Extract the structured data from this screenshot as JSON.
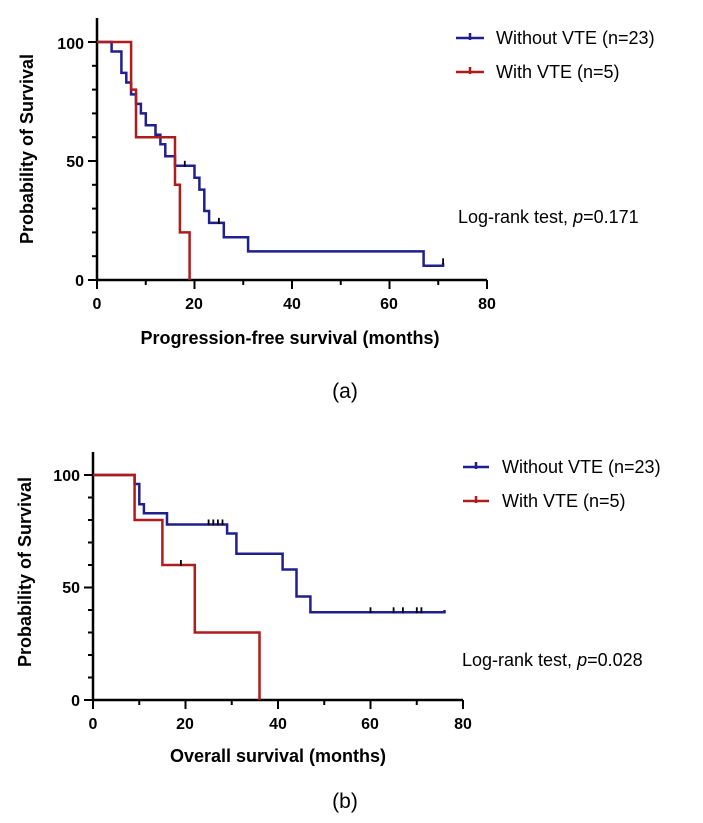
{
  "colors": {
    "without_vte": "#1f1f8f",
    "with_vte": "#b01c1c",
    "axis": "#000000"
  },
  "chart_data": [
    {
      "type": "line",
      "panel_label": "(a)",
      "xlabel": "Progression-free survival (months)",
      "ylabel": "Probability of Survival",
      "xlim": [
        0,
        80
      ],
      "ylim": [
        0,
        100
      ],
      "x_ticks": [
        "0",
        "20",
        "40",
        "60",
        "80"
      ],
      "y_ticks": [
        "0",
        "50",
        "100"
      ],
      "annotation_prefix": "Log-rank test, ",
      "annotation_p": "p",
      "annotation_value": "=0.171",
      "series": [
        {
          "name": "Without VTE (n=23)",
          "color": "#1f1f8f",
          "steps": [
            [
              0,
              100
            ],
            [
              3,
              100
            ],
            [
              3,
              96
            ],
            [
              5,
              96
            ],
            [
              5,
              87
            ],
            [
              6,
              87
            ],
            [
              6,
              83
            ],
            [
              7,
              83
            ],
            [
              7,
              78
            ],
            [
              8,
              78
            ],
            [
              8,
              74
            ],
            [
              9,
              74
            ],
            [
              9,
              70
            ],
            [
              10,
              70
            ],
            [
              10,
              65
            ],
            [
              12,
              65
            ],
            [
              12,
              61
            ],
            [
              13,
              61
            ],
            [
              13,
              57
            ],
            [
              14,
              57
            ],
            [
              14,
              52
            ],
            [
              16,
              52
            ],
            [
              16,
              48
            ],
            [
              20,
              48
            ],
            [
              20,
              43
            ],
            [
              21,
              43
            ],
            [
              21,
              38
            ],
            [
              22,
              38
            ],
            [
              22,
              29
            ],
            [
              23,
              29
            ],
            [
              23,
              24
            ],
            [
              26,
              24
            ],
            [
              26,
              18
            ],
            [
              31,
              18
            ],
            [
              31,
              12
            ],
            [
              67,
              12
            ],
            [
              67,
              6
            ],
            [
              71,
              6
            ],
            [
              71,
              7
            ]
          ],
          "censor_x": [
            18,
            25,
            71
          ],
          "censor_y": [
            48,
            24,
            7
          ]
        },
        {
          "name": "With VTE (n=5)",
          "color": "#b01c1c",
          "steps": [
            [
              0,
              100
            ],
            [
              7,
              100
            ],
            [
              7,
              80
            ],
            [
              8,
              80
            ],
            [
              8,
              60
            ],
            [
              16,
              60
            ],
            [
              16,
              40
            ],
            [
              17,
              40
            ],
            [
              17,
              20
            ],
            [
              19,
              20
            ],
            [
              19,
              0
            ]
          ],
          "censor_x": [],
          "censor_y": []
        }
      ]
    },
    {
      "type": "line",
      "panel_label": "(b)",
      "xlabel": "Overall survival (months)",
      "ylabel": "Probability of Survival",
      "xlim": [
        0,
        80
      ],
      "ylim": [
        0,
        100
      ],
      "x_ticks": [
        "0",
        "20",
        "40",
        "60",
        "80"
      ],
      "y_ticks": [
        "0",
        "50",
        "100"
      ],
      "annotation_prefix": "Log-rank test, ",
      "annotation_p": "p",
      "annotation_value": "=0.028",
      "series": [
        {
          "name": "Without VTE (n=23)",
          "color": "#1f1f8f",
          "steps": [
            [
              0,
              100
            ],
            [
              9,
              100
            ],
            [
              9,
              96
            ],
            [
              10,
              96
            ],
            [
              10,
              87
            ],
            [
              11,
              87
            ],
            [
              11,
              83
            ],
            [
              16,
              83
            ],
            [
              16,
              78
            ],
            [
              29,
              78
            ],
            [
              29,
              74
            ],
            [
              31,
              74
            ],
            [
              31,
              65
            ],
            [
              41,
              65
            ],
            [
              41,
              58
            ],
            [
              44,
              58
            ],
            [
              44,
              46
            ],
            [
              47,
              46
            ],
            [
              47,
              39
            ],
            [
              76,
              39
            ],
            [
              76,
              40
            ]
          ],
          "censor_x": [
            25,
            26,
            27,
            28,
            60,
            65,
            67,
            70,
            71
          ],
          "censor_y": [
            78,
            78,
            78,
            78,
            39,
            39,
            39,
            39,
            39
          ]
        },
        {
          "name": "With VTE (n=5)",
          "color": "#b01c1c",
          "steps": [
            [
              0,
              100
            ],
            [
              9,
              100
            ],
            [
              9,
              80
            ],
            [
              15,
              80
            ],
            [
              15,
              60
            ],
            [
              22,
              60
            ],
            [
              22,
              30
            ],
            [
              36,
              30
            ],
            [
              36,
              0
            ]
          ],
          "censor_x": [
            19
          ],
          "censor_y": [
            60
          ]
        }
      ]
    }
  ]
}
